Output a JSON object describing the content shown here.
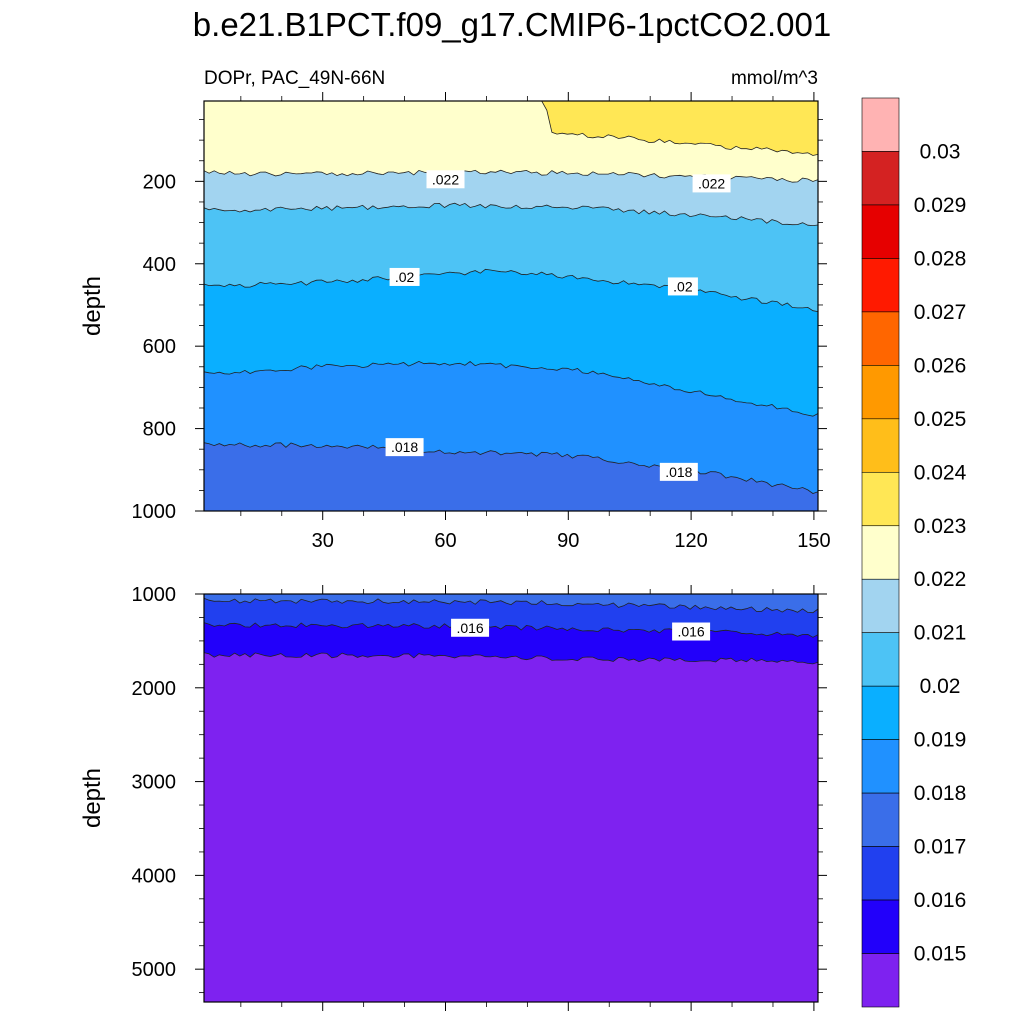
{
  "title": "b.e21.B1PCT.f09_g17.CMIP6-1pctCO2.001",
  "subtitle_left": "DOPr, PAC_49N-66N",
  "subtitle_right": "mmol/m^3",
  "chart_data": [
    {
      "type": "contour",
      "panel": "upper",
      "xlabel": "",
      "ylabel": "depth",
      "xlim": [
        1,
        151
      ],
      "ylim": [
        1000,
        5
      ],
      "y_inverted": true,
      "xticks": [
        30,
        60,
        90,
        120,
        150
      ],
      "yticks": [
        200,
        400,
        600,
        800,
        1000
      ],
      "contour_depths": [
        {
          "level": 0.023,
          "x": [
            1,
            40,
            41,
            70,
            72,
            84,
            86,
            151
          ],
          "depth": [
            5,
            5,
            5,
            5,
            5,
            5,
            80,
            135
          ]
        },
        {
          "level": 0.022,
          "x": [
            1,
            30,
            60,
            90,
            120,
            151
          ],
          "depth": [
            180,
            182,
            178,
            180,
            188,
            198
          ]
        },
        {
          "level": 0.021,
          "x": [
            1,
            30,
            60,
            90,
            120,
            151
          ],
          "depth": [
            270,
            266,
            258,
            262,
            282,
            305
          ]
        },
        {
          "level": 0.02,
          "x": [
            1,
            30,
            60,
            70,
            90,
            120,
            151
          ],
          "depth": [
            455,
            445,
            425,
            418,
            430,
            465,
            512
          ]
        },
        {
          "level": 0.019,
          "x": [
            1,
            30,
            60,
            90,
            120,
            151
          ],
          "depth": [
            668,
            650,
            640,
            655,
            710,
            768
          ]
        },
        {
          "level": 0.018,
          "x": [
            1,
            30,
            60,
            90,
            120,
            151
          ],
          "depth": [
            840,
            840,
            855,
            865,
            900,
            955
          ]
        }
      ],
      "contour_labels": [
        {
          "text": ".022",
          "x": 60,
          "depth": 195
        },
        {
          "text": ".022",
          "x": 125,
          "depth": 205
        },
        {
          "text": ".02",
          "x": 50,
          "depth": 432
        },
        {
          "text": ".02",
          "x": 118,
          "depth": 455
        },
        {
          "text": ".018",
          "x": 50,
          "depth": 845
        },
        {
          "text": ".018",
          "x": 117,
          "depth": 905
        }
      ]
    },
    {
      "type": "contour",
      "panel": "lower",
      "xlabel": "",
      "ylabel": "depth",
      "xlim": [
        1,
        151
      ],
      "ylim": [
        5350,
        1000
      ],
      "y_inverted": true,
      "yticks": [
        1000,
        2000,
        3000,
        4000,
        5000
      ],
      "contour_depths": [
        {
          "level": 0.017,
          "x": [
            1,
            60,
            90,
            120,
            151
          ],
          "depth": [
            1070,
            1080,
            1100,
            1140,
            1180
          ]
        },
        {
          "level": 0.016,
          "x": [
            1,
            60,
            90,
            120,
            151
          ],
          "depth": [
            1330,
            1340,
            1370,
            1400,
            1440
          ]
        },
        {
          "level": 0.015,
          "x": [
            1,
            60,
            90,
            120,
            151
          ],
          "depth": [
            1650,
            1660,
            1690,
            1700,
            1720
          ]
        }
      ],
      "contour_labels": [
        {
          "text": ".016",
          "x": 66,
          "depth": 1360
        },
        {
          "text": ".016",
          "x": 120,
          "depth": 1400
        }
      ]
    }
  ],
  "colorbar": {
    "labels": [
      "0.03",
      "0.029",
      "0.028",
      "0.027",
      "0.026",
      "0.025",
      "0.024",
      "0.023",
      "0.022",
      "0.021",
      "0.02",
      "0.019",
      "0.018",
      "0.017",
      "0.016",
      "0.015"
    ],
    "colors": [
      "#FFB3B3",
      "#D42222",
      "#E60000",
      "#FF1A00",
      "#FF6600",
      "#FF9900",
      "#FFBE1A",
      "#FFE755",
      "#FFFFCC",
      "#A2D4F0",
      "#4DC3F5",
      "#0AAFFF",
      "#2091FF",
      "#3A6EE9",
      "#2140EF",
      "#2200FA",
      "#7E22F0"
    ]
  }
}
